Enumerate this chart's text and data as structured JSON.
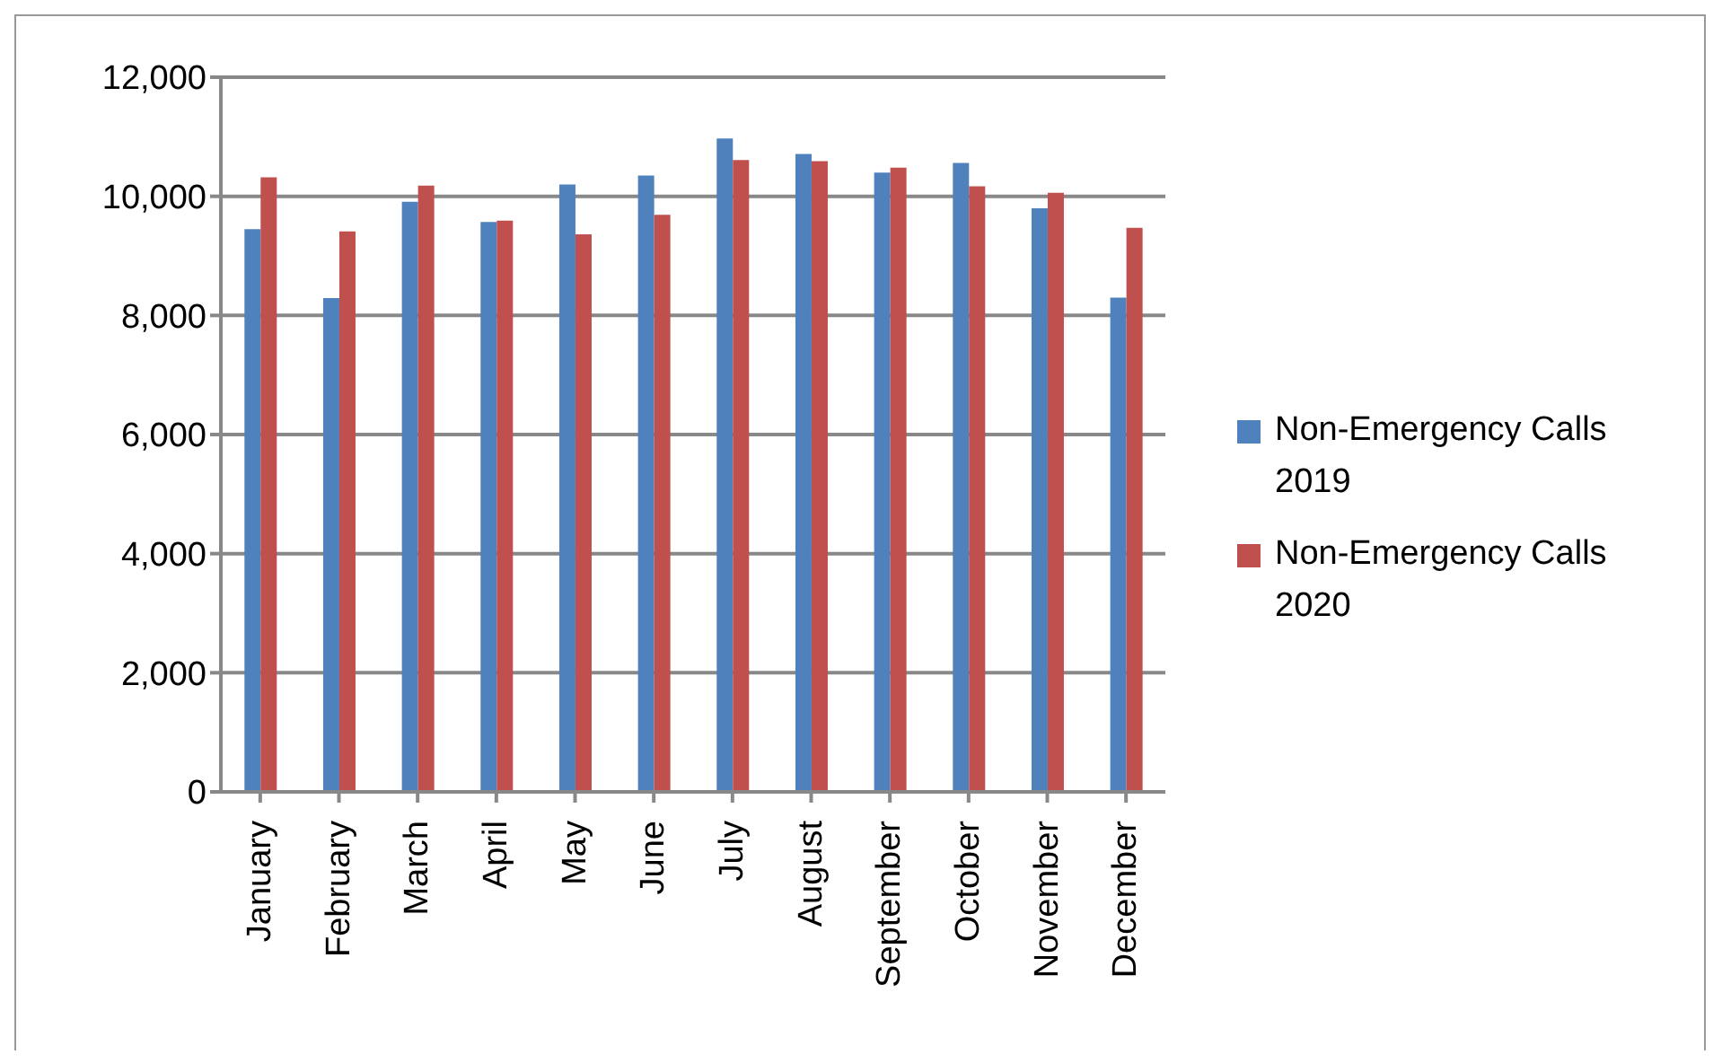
{
  "chart_data": {
    "type": "bar",
    "categories": [
      "January",
      "February",
      "March",
      "April",
      "May",
      "June",
      "July",
      "August",
      "September",
      "October",
      "November",
      "December"
    ],
    "series": [
      {
        "name": "Non-Emergency Calls 2019",
        "color": "#4f81bd",
        "values": [
          9450,
          8290,
          9910,
          9570,
          10200,
          10350,
          10970,
          10710,
          10400,
          10560,
          9800,
          8300
        ]
      },
      {
        "name": "Non-Emergency Calls 2020",
        "color": "#c0504d",
        "values": [
          10320,
          9410,
          10180,
          9590,
          9360,
          9690,
          10610,
          10590,
          10480,
          10170,
          10060,
          9470
        ]
      }
    ],
    "ylim": [
      0,
      12000
    ],
    "yticks": [
      0,
      {
        "value": 2000,
        "label": "2,000"
      },
      {
        "value": 4000,
        "label": "4,000"
      },
      {
        "value": 6000,
        "label": "6,000"
      },
      {
        "value": 8000,
        "label": "8,000"
      },
      {
        "value": 10000,
        "label": "10,000"
      },
      {
        "value": 12000,
        "label": "12,000"
      }
    ],
    "grid": "y",
    "legend": "right"
  }
}
